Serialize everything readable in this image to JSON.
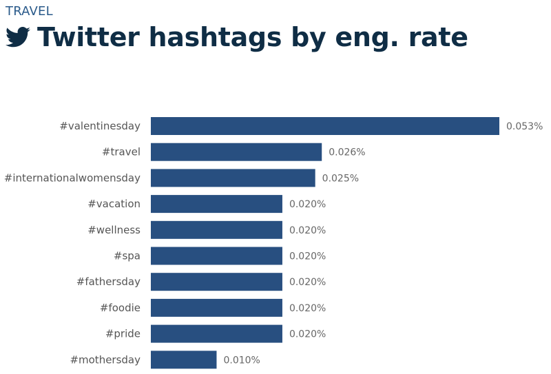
{
  "header": {
    "kicker": "TRAVEL",
    "title": "Twitter hashtags by eng. rate",
    "icon": "twitter-bird-icon"
  },
  "colors": {
    "bar": "#284f80",
    "title": "#0f2d45",
    "kicker": "#2a5a8a"
  },
  "chart_data": {
    "type": "bar",
    "orientation": "horizontal",
    "categories": [
      "#valentinesday",
      "#travel",
      "#internationalwomensday",
      "#vacation",
      "#wellness",
      "#spa",
      "#fathersday",
      "#foodie",
      "#pride",
      "#mothersday"
    ],
    "values": [
      0.053,
      0.026,
      0.025,
      0.02,
      0.02,
      0.02,
      0.02,
      0.02,
      0.02,
      0.01
    ],
    "value_labels": [
      "0.053%",
      "0.026%",
      "0.025%",
      "0.020%",
      "0.020%",
      "0.020%",
      "0.020%",
      "0.020%",
      "0.020%",
      "0.010%"
    ],
    "unit": "%",
    "xlim": [
      0,
      0.053
    ],
    "grid": false,
    "legend": "none"
  }
}
